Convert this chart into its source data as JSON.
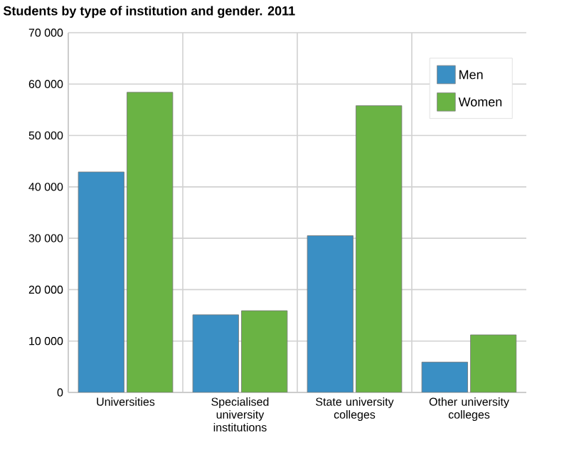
{
  "chart_data": {
    "type": "bar",
    "title": "Students by type of institution and gender. 2011",
    "categories": [
      "Universities",
      "Specialised university institutions",
      "State university colleges",
      "Other university colleges"
    ],
    "series": [
      {
        "name": "Men",
        "color": "#3a8fc4",
        "values": [
          42900,
          15100,
          30500,
          5900
        ]
      },
      {
        "name": "Women",
        "color": "#6ab344",
        "values": [
          58400,
          15900,
          55800,
          11200
        ]
      }
    ],
    "ylim": [
      0,
      70000
    ],
    "yticks": [
      {
        "value": 0,
        "label": "0"
      },
      {
        "value": 10000,
        "label": "10 000"
      },
      {
        "value": 20000,
        "label": "20 000"
      },
      {
        "value": 30000,
        "label": "30 000"
      },
      {
        "value": 40000,
        "label": "40 000"
      },
      {
        "value": 50000,
        "label": "50 000"
      },
      {
        "value": 60000,
        "label": "60 000"
      },
      {
        "value": 70000,
        "label": "70 000"
      }
    ],
    "grid": true,
    "legend": "top right"
  }
}
